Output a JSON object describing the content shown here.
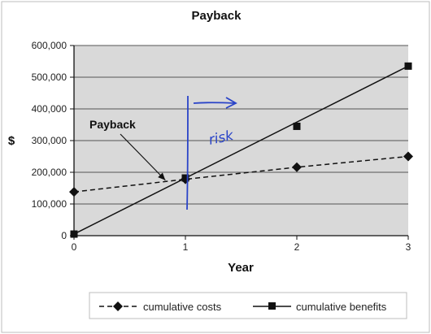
{
  "chart_data": {
    "type": "line",
    "title": "Payback",
    "xlabel": "Year",
    "ylabel": "$",
    "x": [
      0,
      1,
      2,
      3
    ],
    "x_ticks": [
      "0",
      "1",
      "2",
      "3"
    ],
    "y_ticks": [
      "0",
      "100,000",
      "200,000",
      "300,000",
      "400,000",
      "500,000",
      "600,000"
    ],
    "xlim": [
      0,
      3
    ],
    "ylim": [
      0,
      600000
    ],
    "grid": "horizontal",
    "legend_position": "bottom-right",
    "series": [
      {
        "name": "cumulative costs",
        "line_style": "dashed",
        "marker": "diamond",
        "values": [
          138000,
          178000,
          216000,
          250000
        ],
        "color": "#111111"
      },
      {
        "name": "cumulative benefits",
        "line_style": "solid",
        "marker": "square",
        "values": [
          5000,
          182000,
          345000,
          535000
        ],
        "color": "#111111"
      }
    ],
    "annotations": [
      {
        "text": "Payback",
        "target_x": 0.82,
        "target_y": 175000
      }
    ],
    "handwritten": {
      "text": "risk",
      "color": "#2a44c8"
    }
  },
  "colors": {
    "plot_bg": "#d9d9d9",
    "grid": "#555555",
    "ink": "#2a44c8"
  }
}
